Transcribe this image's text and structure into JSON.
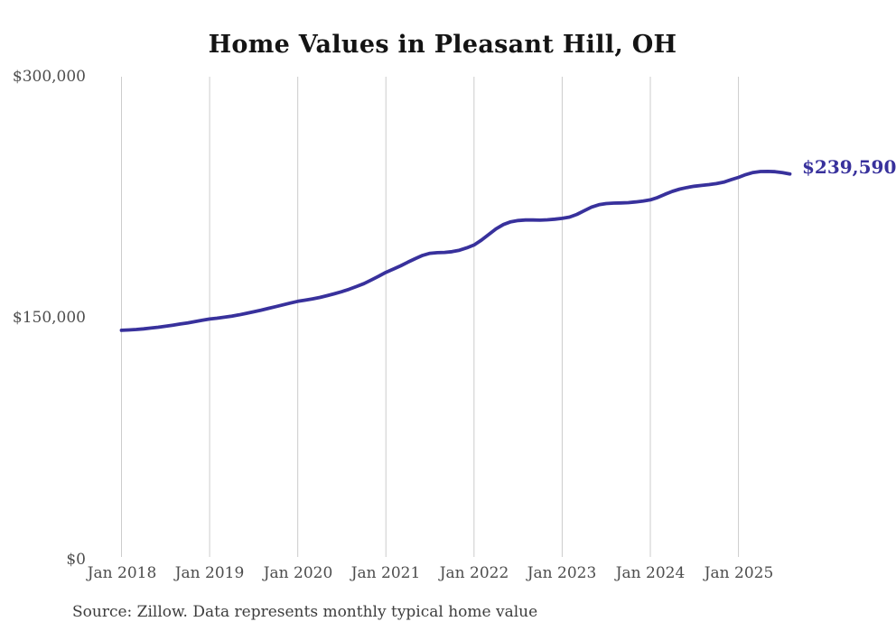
{
  "source_note": "Source: Zillow. Data represents monthly typical home value",
  "chart_data": {
    "type": "line",
    "title": "Home Values in Pleasant Hill, OH",
    "series_name": "Monthly typical home value",
    "legend": "none",
    "grid": "vertical-only",
    "line_color": "#38319c",
    "grid_color": "#cccccc",
    "end_label": "$239,590",
    "end_value": 239590,
    "ylim": [
      0,
      300000
    ],
    "y_ticks": [
      0,
      150000,
      300000
    ],
    "y_tick_labels": [
      "$0",
      "$150,000",
      "$300,000"
    ],
    "x_tick_labels": [
      "Jan 2018",
      "Jan 2019",
      "Jan 2020",
      "Jan 2021",
      "Jan 2022",
      "Jan 2023",
      "Jan 2024",
      "Jan 2025"
    ],
    "x_freq": "monthly",
    "months": [
      "2018-01",
      "2018-02",
      "2018-03",
      "2018-04",
      "2018-05",
      "2018-06",
      "2018-07",
      "2018-08",
      "2018-09",
      "2018-10",
      "2018-11",
      "2018-12",
      "2019-01",
      "2019-02",
      "2019-03",
      "2019-04",
      "2019-05",
      "2019-06",
      "2019-07",
      "2019-08",
      "2019-09",
      "2019-10",
      "2019-11",
      "2019-12",
      "2020-01",
      "2020-02",
      "2020-03",
      "2020-04",
      "2020-05",
      "2020-06",
      "2020-07",
      "2020-08",
      "2020-09",
      "2020-10",
      "2020-11",
      "2020-12",
      "2021-01",
      "2021-02",
      "2021-03",
      "2021-04",
      "2021-05",
      "2021-06",
      "2021-07",
      "2021-08",
      "2021-09",
      "2021-10",
      "2021-11",
      "2021-12",
      "2022-01",
      "2022-02",
      "2022-03",
      "2022-04",
      "2022-05",
      "2022-06",
      "2022-07",
      "2022-08",
      "2022-09",
      "2022-10",
      "2022-11",
      "2022-12",
      "2023-01",
      "2023-02",
      "2023-03",
      "2023-04",
      "2023-05",
      "2023-06",
      "2023-07",
      "2023-08",
      "2023-09",
      "2023-10",
      "2023-11",
      "2023-12",
      "2024-01",
      "2024-02",
      "2024-03",
      "2024-04",
      "2024-05",
      "2024-06",
      "2024-07",
      "2024-08",
      "2024-09",
      "2024-10",
      "2024-11",
      "2024-12",
      "2025-01",
      "2025-02",
      "2025-03",
      "2025-04",
      "2025-05",
      "2025-06",
      "2025-07",
      "2025-08"
    ],
    "values": [
      142500,
      142700,
      143000,
      143400,
      143900,
      144400,
      145000,
      145700,
      146400,
      147100,
      147900,
      148700,
      149500,
      150000,
      150600,
      151300,
      152100,
      153000,
      154000,
      155000,
      156100,
      157200,
      158300,
      159400,
      160500,
      161200,
      162000,
      162900,
      164000,
      165200,
      166500,
      168000,
      169700,
      171500,
      173700,
      176000,
      178500,
      180500,
      182500,
      184800,
      187000,
      189000,
      190300,
      190700,
      190900,
      191300,
      192200,
      193700,
      195500,
      198500,
      202000,
      205500,
      208200,
      209900,
      210700,
      211000,
      211000,
      210900,
      211100,
      211500,
      212000,
      212800,
      214500,
      216800,
      219000,
      220500,
      221200,
      221500,
      221600,
      221800,
      222200,
      222800,
      223500,
      225000,
      227000,
      228800,
      230200,
      231200,
      232000,
      232500,
      233000,
      233600,
      234500,
      236000,
      237500,
      239200,
      240500,
      241100,
      241200,
      241000,
      240400,
      239590
    ]
  }
}
